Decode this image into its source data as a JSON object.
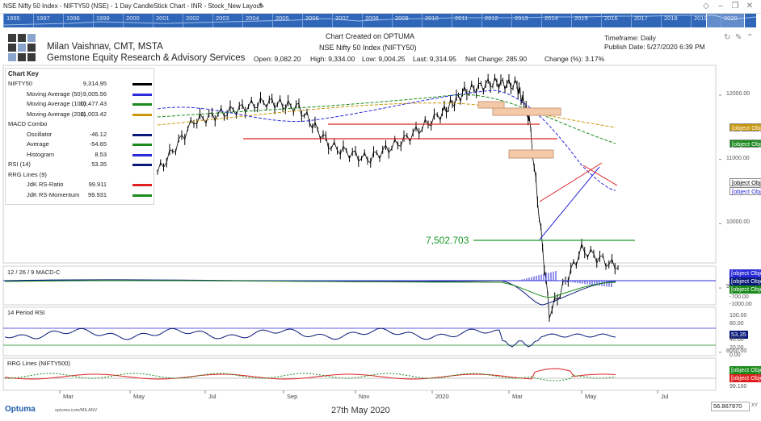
{
  "window": {
    "title": "NSE Nifty 50 Index - NIFTY50 (NSE) - 1 Day CandleStick Chart - INR - Stock_New Layout",
    "edit_icon": "pencil-icon",
    "controls": [
      "diamond-icon",
      "minimize-icon",
      "restore-icon",
      "close-icon"
    ]
  },
  "timeline": {
    "years": [
      "1995",
      "1997",
      "1998",
      "1999",
      "2000",
      "2001",
      "2002",
      "2003",
      "2004",
      "2005",
      "2006",
      "2007",
      "2008",
      "2009",
      "2010",
      "2011",
      "2012",
      "2013",
      "2014",
      "2015",
      "2016",
      "2017",
      "2018",
      "2019",
      "2020"
    ]
  },
  "header": {
    "author": "Milan Vaishnav, CMT, MSTA",
    "firm": "Gemstone Equity Research & Advisory Services",
    "created": "Chart Created on OPTUMA",
    "instrument": "NSE Nifty 50 Index (NIFTY50)",
    "open": "Open: 9,082.20",
    "high": "High: 9,334.00",
    "low": "Low: 9,004.25",
    "last": "Last: 9,314.95",
    "net_change": "Net Change: 285.90",
    "change_pct": "Change (%): 3.17%",
    "timeframe": "Timeframe: Daily",
    "publish": "Publish Date: 5/27/2020 6:39 PM"
  },
  "chart_key": {
    "title": "Chart Key",
    "rows": [
      {
        "label": "NIFTY50",
        "value": "9,314.95",
        "color": "#000000",
        "indent": false,
        "swatch": true
      },
      {
        "label": "Moving Average (50)",
        "value": "9,005.56",
        "color": "#2a2ad8",
        "indent": true,
        "swatch": true
      },
      {
        "label": "Moving Average (100)",
        "value": "10,477.43",
        "color": "#1a8a1a",
        "indent": true,
        "swatch": true
      },
      {
        "label": "Moving Average (200)",
        "value": "11,003.42",
        "color": "#c8960a",
        "indent": true,
        "swatch": true
      },
      {
        "label": "MACD Combo",
        "value": "",
        "color": "",
        "indent": false,
        "swatch": false
      },
      {
        "label": "Oscillator",
        "value": "-46.12",
        "color": "#0a1a7a",
        "indent": true,
        "swatch": true
      },
      {
        "label": "Average",
        "value": "-54.65",
        "color": "#1a8a1a",
        "indent": true,
        "swatch": true
      },
      {
        "label": "Histogram",
        "value": "8.53",
        "color": "#2a2ad8",
        "indent": true,
        "swatch": true
      },
      {
        "label": "RSI (14)",
        "value": "53.35",
        "color": "#0a1a7a",
        "indent": false,
        "swatch": true
      },
      {
        "label": "RRG Lines (9)",
        "value": "",
        "color": "",
        "indent": false,
        "swatch": false
      },
      {
        "label": "JdK RS-Ratio",
        "value": "99.911",
        "color": "#e02020",
        "indent": true,
        "swatch": true
      },
      {
        "label": "JdK RS-Momentum",
        "value": "99.931",
        "color": "#1a8a1a",
        "indent": true,
        "swatch": true
      }
    ]
  },
  "price_axis": [
    "12000.00",
    "11000.00",
    "10000.00",
    "9000.00",
    "8000.00",
    "7000.00"
  ],
  "price_badges": [
    {
      "text": "11,003.42",
      "bg": "#c8960a",
      "fg": "#ffffff"
    },
    {
      "text": "10,477.43",
      "bg": "#1a8a1a",
      "fg": "#ffffff"
    },
    {
      "text": "9,314.95",
      "bg": "#ffffff",
      "fg": "#000000"
    },
    {
      "text": "9,005.56",
      "bg": "#ffffff",
      "fg": "#2a2ad8"
    }
  ],
  "annotation": "7,502.703",
  "panels": {
    "macd": {
      "title": "12 / 26 / 9 MACD-C",
      "axis": [
        "-700.00",
        "-1000.00"
      ],
      "badges": [
        {
          "text": "8.53",
          "bg": "#2a2ad8",
          "fg": "#ffffff"
        },
        {
          "text": "-46.12",
          "bg": "#0a1a7a",
          "fg": "#ffffff"
        },
        {
          "text": "-54.65",
          "bg": "#1a8a1a",
          "fg": "#ffffff"
        }
      ]
    },
    "rsi": {
      "title": "14 Period RSI",
      "axis": [
        "100.00",
        "80.00",
        "60.00",
        "40.00",
        "20.00",
        "0.00"
      ],
      "badge": {
        "text": "53.35",
        "bg": "#0a1a7a",
        "fg": "#ffffff"
      }
    },
    "rrg": {
      "title": "RRG Lines (NIFTY500)",
      "axis": [
        "99.100"
      ],
      "badges": [
        {
          "text": "99.931",
          "bg": "#1a8a1a",
          "fg": "#ffffff"
        },
        {
          "text": "99.911",
          "bg": "#e02020",
          "fg": "#ffffff"
        }
      ]
    }
  },
  "months": [
    "Mar",
    "May",
    "Jul",
    "Sep",
    "Nov",
    "2020",
    "Mar",
    "May",
    "Jul"
  ],
  "footer": {
    "brand": "Optuma",
    "url": "optuma.com/MILANV",
    "date": "27th May 2020",
    "coord": "56.867870",
    "xy": "XY"
  },
  "chart_data": {
    "type": "candlestick",
    "title": "NSE Nifty 50 Index (NIFTY50)",
    "timeframe": "Daily",
    "approx_series": {
      "label": "NIFTY50 close (approx, monthly)",
      "x": [
        "2019-02",
        "2019-03",
        "2019-04",
        "2019-05",
        "2019-06",
        "2019-07",
        "2019-08",
        "2019-09",
        "2019-10",
        "2019-11",
        "2019-12",
        "2020-01",
        "2020-02",
        "2020-03",
        "2020-04",
        "2020-05"
      ],
      "values": [
        10800,
        11600,
        11750,
        11900,
        11800,
        11200,
        11000,
        11300,
        11700,
        12050,
        12200,
        12150,
        11650,
        8600,
        9600,
        9315
      ]
    },
    "indicators": {
      "ma50": 9005.56,
      "ma100": 10477.43,
      "ma200": 11003.42,
      "macd_oscillator": -46.12,
      "macd_average": -54.65,
      "macd_histogram": 8.53,
      "rsi14": 53.35,
      "rs_ratio": 99.911,
      "rs_momentum": 99.931
    },
    "support_level": 7502.703,
    "ylim": [
      6800,
      12600
    ]
  }
}
